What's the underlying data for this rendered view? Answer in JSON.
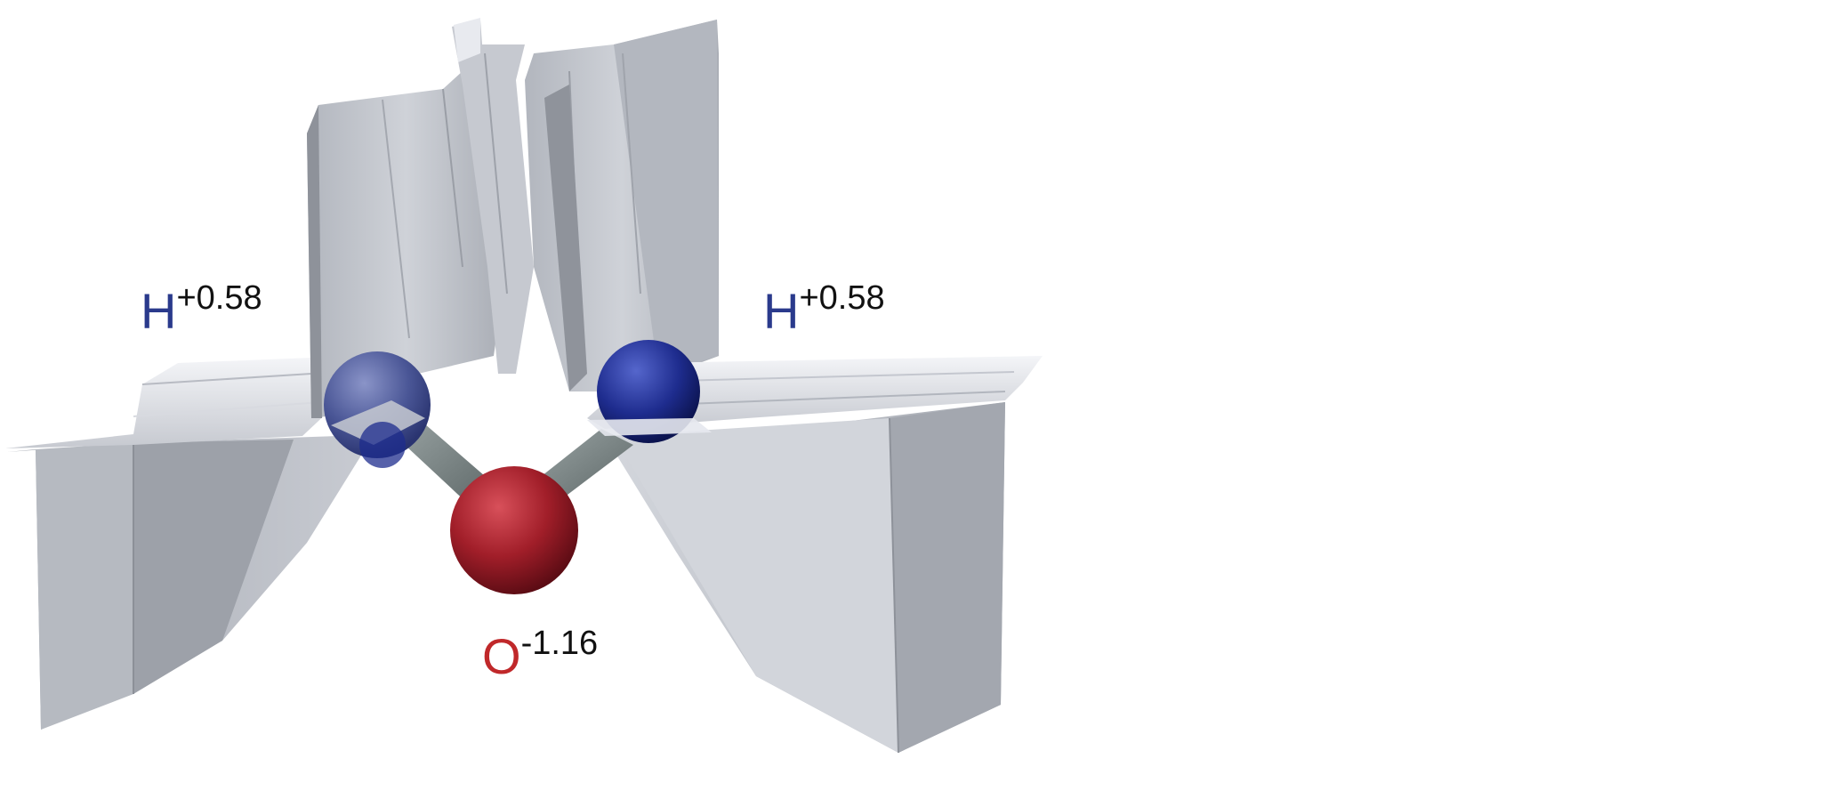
{
  "atoms": [
    {
      "id": "h-left",
      "symbol": "H",
      "charge": "+0.58",
      "color": "#2a3a8c"
    },
    {
      "id": "h-right",
      "symbol": "H",
      "charge": "+0.58",
      "color": "#2a3a8c"
    },
    {
      "id": "oxygen",
      "symbol": "O",
      "charge": "-1.16",
      "color": "#c0282a"
    }
  ],
  "colors": {
    "surface_light": "#e6e8ee",
    "surface_mid": "#c4c8d0",
    "surface_dark": "#9ea2aa",
    "hydrogen": "#2a3a8c",
    "oxygen": "#a8202a",
    "bond": "#7a8484"
  }
}
